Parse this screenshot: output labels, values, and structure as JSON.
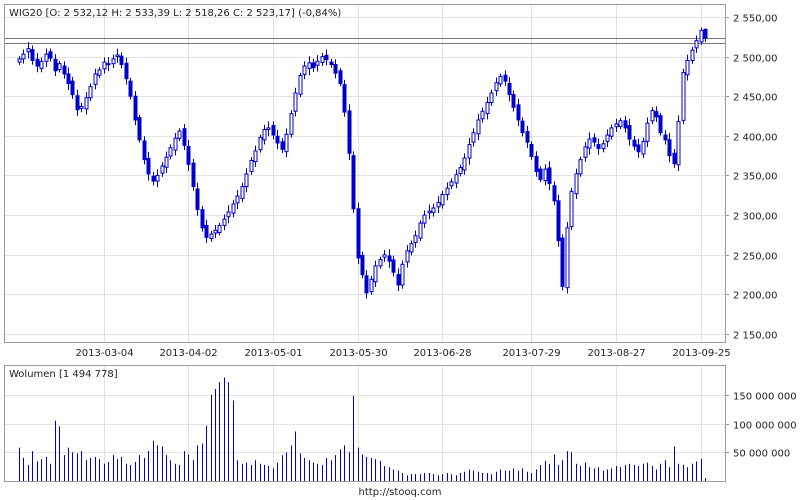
{
  "site": {
    "footer": "http://stooq.com"
  },
  "chart_data": [
    {
      "type": "candlestick",
      "name": "WIG20",
      "title": "WIG20 [O: 2 532,12  H: 2 533,39  L: 2 518,26  C: 2 523,17] (-0,84%)",
      "title_prefix": "WIG20 [O: ",
      "ohlc_last": {
        "open": "2 532,12",
        "high": "2 533,39",
        "low": "2 518,26",
        "close": "2 523,17"
      },
      "change": "(-0,84%)",
      "ylim": [
        2140,
        2565
      ],
      "yticks": [
        2150,
        2200,
        2250,
        2300,
        2350,
        2400,
        2450,
        2500,
        2550
      ],
      "ytick_labels": [
        "2 150,00",
        "2 200,00",
        "2 250,00",
        "2 300,00",
        "2 350,00",
        "2 400,00",
        "2 450,00",
        "2 500,00",
        "2 550,00"
      ],
      "xtick_labels": [
        "2013-03-04",
        "2013-04-02",
        "2013-05-01",
        "2013-05-30",
        "2013-06-28",
        "2013-07-29",
        "2013-08-27",
        "2013-09-25"
      ],
      "xtick_index": [
        19,
        38,
        57,
        76,
        95,
        115,
        134,
        153
      ],
      "reference_lines": [
        2523.17,
        2517
      ],
      "series_color": "#0000cc",
      "closes": [
        2497,
        2503,
        2510,
        2495,
        2488,
        2494,
        2503,
        2498,
        2482,
        2491,
        2478,
        2466,
        2452,
        2433,
        2437,
        2448,
        2462,
        2478,
        2483,
        2493,
        2491,
        2497,
        2502,
        2490,
        2472,
        2450,
        2420,
        2395,
        2370,
        2352,
        2343,
        2350,
        2362,
        2373,
        2385,
        2397,
        2406,
        2388,
        2364,
        2336,
        2307,
        2284,
        2272,
        2276,
        2281,
        2287,
        2295,
        2304,
        2314,
        2324,
        2336,
        2352,
        2369,
        2381,
        2398,
        2408,
        2410,
        2401,
        2391,
        2383,
        2402,
        2428,
        2454,
        2476,
        2488,
        2492,
        2486,
        2494,
        2500,
        2496,
        2490,
        2479,
        2466,
        2430,
        2378,
        2308,
        2246,
        2225,
        2202,
        2219,
        2236,
        2244,
        2250,
        2242,
        2228,
        2212,
        2238,
        2255,
        2264,
        2274,
        2290,
        2300,
        2305,
        2309,
        2316,
        2326,
        2334,
        2342,
        2351,
        2360,
        2372,
        2389,
        2404,
        2420,
        2431,
        2442,
        2454,
        2467,
        2475,
        2469,
        2452,
        2436,
        2420,
        2404,
        2392,
        2374,
        2355,
        2345,
        2358,
        2340,
        2318,
        2268,
        2210,
        2284,
        2330,
        2352,
        2370,
        2386,
        2396,
        2392,
        2384,
        2390,
        2401,
        2410,
        2415,
        2419,
        2410,
        2396,
        2387,
        2380,
        2393,
        2416,
        2432,
        2424,
        2404,
        2395,
        2375,
        2365,
        2418,
        2480,
        2495,
        2508,
        2520,
        2533,
        2523
      ],
      "volume_title": "Wolumen [1 494 778]",
      "volume_ylim": [
        0,
        200000000
      ],
      "volume_ticks": [
        50000000,
        100000000,
        150000000
      ],
      "volume_tick_labels": [
        "50 000 000",
        "100 000 000",
        "150 000 000"
      ],
      "volumes": [
        58000000,
        40000000,
        28000000,
        52000000,
        34000000,
        38000000,
        42000000,
        30000000,
        105000000,
        95000000,
        45000000,
        58000000,
        50000000,
        48000000,
        52000000,
        36000000,
        40000000,
        42000000,
        38000000,
        30000000,
        33000000,
        45000000,
        38000000,
        42000000,
        30000000,
        28000000,
        33000000,
        45000000,
        40000000,
        52000000,
        70000000,
        62000000,
        60000000,
        45000000,
        36000000,
        30000000,
        28000000,
        52000000,
        46000000,
        36000000,
        62000000,
        65000000,
        96000000,
        150000000,
        160000000,
        172000000,
        180000000,
        172000000,
        140000000,
        36000000,
        30000000,
        32000000,
        28000000,
        36000000,
        30000000,
        28000000,
        26000000,
        22000000,
        32000000,
        45000000,
        50000000,
        62000000,
        86000000,
        48000000,
        40000000,
        36000000,
        32000000,
        30000000,
        28000000,
        40000000,
        36000000,
        45000000,
        55000000,
        62000000,
        50000000,
        148000000,
        58000000,
        46000000,
        42000000,
        40000000,
        38000000,
        35000000,
        26000000,
        24000000,
        20000000,
        18000000,
        14000000,
        10000000,
        12000000,
        12000000,
        12000000,
        14000000,
        14000000,
        12000000,
        10000000,
        12000000,
        14000000,
        12000000,
        10000000,
        14000000,
        16000000,
        20000000,
        18000000,
        16000000,
        14000000,
        14000000,
        12000000,
        16000000,
        20000000,
        18000000,
        18000000,
        22000000,
        18000000,
        22000000,
        16000000,
        14000000,
        20000000,
        28000000,
        35000000,
        30000000,
        46000000,
        28000000,
        36000000,
        52000000,
        50000000,
        30000000,
        26000000,
        32000000,
        24000000,
        22000000,
        24000000,
        18000000,
        20000000,
        22000000,
        26000000,
        24000000,
        28000000,
        30000000,
        28000000,
        26000000,
        30000000,
        32000000,
        26000000,
        20000000,
        30000000,
        36000000,
        24000000,
        60000000,
        30000000,
        28000000,
        24000000,
        30000000,
        34000000,
        38000000,
        5000000
      ]
    }
  ]
}
